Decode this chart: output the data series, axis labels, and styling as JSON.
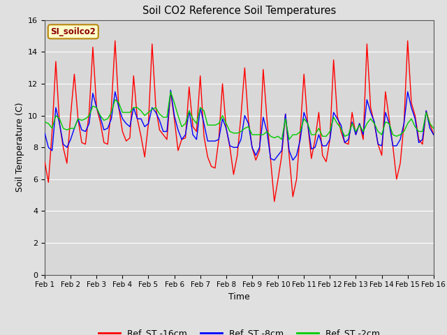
{
  "title": "Soil CO2 Reference Soil Temperatures",
  "xlabel": "Time",
  "ylabel": "Soil Temperature (C)",
  "annotation": "SI_soilco2",
  "ylim": [
    0,
    16
  ],
  "yticks": [
    0,
    2,
    4,
    6,
    8,
    10,
    12,
    14,
    16
  ],
  "xtick_labels": [
    "Feb 1",
    "Feb 2",
    "Feb 3",
    "Feb 4",
    "Feb 5",
    "Feb 6",
    "Feb 7",
    "Feb 8",
    "Feb 9",
    "Feb 10",
    "Feb 11",
    "Feb 12",
    "Feb 13",
    "Feb 14",
    "Feb 15",
    "Feb 16"
  ],
  "bg_color": "#d8d8d8",
  "plot_bg_color": "#d8d8d8",
  "outer_bg_color": "#e0e0e0",
  "line_colors": {
    "red": "#ff0000",
    "blue": "#0000ff",
    "green": "#00cc00"
  },
  "legend": [
    "Ref_ST -16cm",
    "Ref_ST -8cm",
    "Ref_ST -2cm"
  ],
  "red_data": [
    7.1,
    5.8,
    9.0,
    13.4,
    9.5,
    8.0,
    7.0,
    10.0,
    12.6,
    9.8,
    8.3,
    8.2,
    10.2,
    14.3,
    10.5,
    9.6,
    8.3,
    8.2,
    10.5,
    14.7,
    10.5,
    9.0,
    8.4,
    8.6,
    12.5,
    9.8,
    8.7,
    7.4,
    9.5,
    14.5,
    10.5,
    9.1,
    8.8,
    8.5,
    11.5,
    9.8,
    7.8,
    8.5,
    8.6,
    11.8,
    9.3,
    9.0,
    12.5,
    8.7,
    7.4,
    6.8,
    6.7,
    8.5,
    12.0,
    9.2,
    8.0,
    6.3,
    7.5,
    10.0,
    13.0,
    9.7,
    8.0,
    7.2,
    7.8,
    12.9,
    9.8,
    7.2,
    4.6,
    6.0,
    7.5,
    10.1,
    7.5,
    4.9,
    6.0,
    9.0,
    12.6,
    9.5,
    7.3,
    8.5,
    10.2,
    7.5,
    7.1,
    8.5,
    13.5,
    10.0,
    9.0,
    8.3,
    8.2,
    10.2,
    8.8,
    9.5,
    8.5,
    14.5,
    10.5,
    9.5,
    8.2,
    7.5,
    11.5,
    9.8,
    8.1,
    6.0,
    7.0,
    9.5,
    14.7,
    10.8,
    10.0,
    8.5,
    8.2,
    10.3,
    9.5,
    8.8
  ],
  "blue_data": [
    8.9,
    8.0,
    7.8,
    10.5,
    9.5,
    8.2,
    8.0,
    8.5,
    9.2,
    9.8,
    9.1,
    9.0,
    9.5,
    11.4,
    10.5,
    9.9,
    9.1,
    9.2,
    9.8,
    11.5,
    10.5,
    9.8,
    9.5,
    9.3,
    10.5,
    9.8,
    9.8,
    9.3,
    9.5,
    10.5,
    10.2,
    9.7,
    9.0,
    9.0,
    11.6,
    10.0,
    9.1,
    8.5,
    8.8,
    10.3,
    8.8,
    8.5,
    10.5,
    9.5,
    8.4,
    8.4,
    8.4,
    8.5,
    9.8,
    9.2,
    8.1,
    8.0,
    8.0,
    8.5,
    10.0,
    9.5,
    8.0,
    7.5,
    8.0,
    9.9,
    9.0,
    7.3,
    7.2,
    7.5,
    7.8,
    10.1,
    7.8,
    7.2,
    7.5,
    8.5,
    10.2,
    9.5,
    7.9,
    8.0,
    8.8,
    8.1,
    8.1,
    8.5,
    10.2,
    9.8,
    9.4,
    8.3,
    8.5,
    9.6,
    8.8,
    9.5,
    8.8,
    11.0,
    10.2,
    9.6,
    8.2,
    8.1,
    10.2,
    9.5,
    8.1,
    8.1,
    8.5,
    9.5,
    11.5,
    10.5,
    9.8,
    8.3,
    8.5,
    10.3,
    9.2,
    8.8
  ],
  "green_data": [
    9.6,
    9.5,
    9.2,
    10.0,
    9.8,
    9.2,
    9.1,
    9.2,
    9.2,
    9.8,
    9.7,
    9.8,
    10.0,
    10.6,
    10.5,
    10.0,
    9.7,
    9.8,
    10.2,
    11.0,
    10.8,
    10.2,
    10.2,
    10.2,
    10.5,
    10.5,
    10.3,
    10.0,
    10.2,
    10.4,
    10.5,
    10.1,
    9.9,
    9.9,
    11.5,
    10.8,
    10.0,
    9.3,
    9.5,
    10.3,
    9.8,
    9.5,
    10.5,
    10.3,
    9.4,
    9.4,
    9.4,
    9.5,
    10.0,
    9.5,
    9.0,
    8.9,
    8.9,
    9.0,
    9.2,
    9.3,
    8.8,
    8.8,
    8.8,
    8.8,
    9.0,
    8.7,
    8.6,
    8.7,
    8.5,
    9.8,
    8.5,
    8.8,
    8.8,
    9.0,
    9.8,
    9.5,
    8.8,
    8.8,
    9.2,
    8.7,
    8.7,
    9.0,
    9.9,
    9.5,
    9.2,
    8.7,
    8.8,
    9.5,
    9.0,
    9.4,
    9.0,
    9.5,
    9.8,
    9.5,
    9.0,
    8.8,
    9.6,
    9.5,
    8.8,
    8.7,
    8.8,
    9.0,
    9.5,
    9.8,
    9.3,
    9.0,
    9.0,
    10.2,
    9.5,
    9.2
  ]
}
